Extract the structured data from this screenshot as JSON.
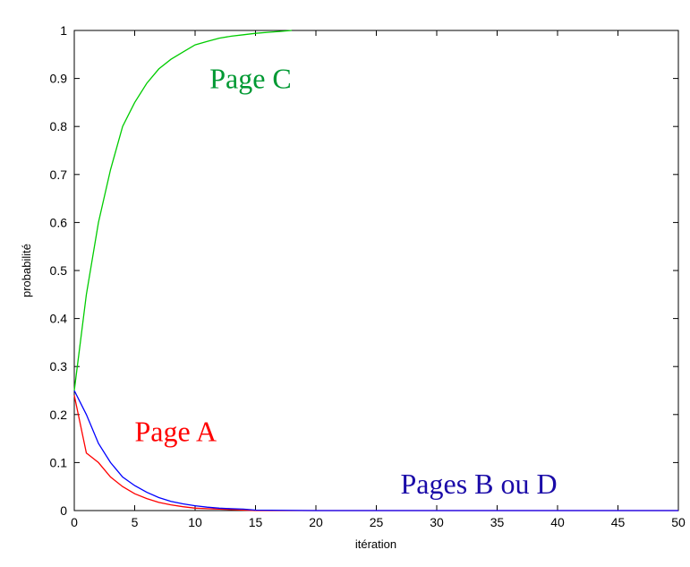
{
  "chart_data": {
    "type": "line",
    "title": "",
    "xlabel": "itération",
    "ylabel": "probabilité",
    "xlim": [
      0,
      50
    ],
    "ylim": [
      0,
      1
    ],
    "xticks": [
      0,
      5,
      10,
      15,
      20,
      25,
      30,
      35,
      40,
      45,
      50
    ],
    "yticks": [
      0,
      0.1,
      0.2,
      0.3,
      0.4,
      0.5,
      0.6,
      0.7,
      0.8,
      0.9,
      1
    ],
    "grid": false,
    "series": [
      {
        "label": "Page C",
        "color": "#00cc00",
        "x": [
          0,
          1,
          2,
          3,
          4,
          5,
          6,
          7,
          8,
          9,
          10,
          11,
          12,
          13,
          14,
          15,
          16,
          17,
          18
        ],
        "values": [
          0.25,
          0.45,
          0.6,
          0.71,
          0.8,
          0.85,
          0.89,
          0.92,
          0.94,
          0.955,
          0.97,
          0.977,
          0.984,
          0.988,
          0.991,
          0.994,
          0.996,
          0.998,
          1.0
        ]
      },
      {
        "label": "Page A",
        "color": "#ff0000",
        "x": [
          0,
          1,
          2,
          3,
          4,
          5,
          6,
          7,
          8,
          9,
          10,
          11,
          12,
          13,
          14,
          15,
          20,
          25,
          30,
          35,
          40,
          45,
          50
        ],
        "values": [
          0.24,
          0.12,
          0.1,
          0.07,
          0.05,
          0.035,
          0.025,
          0.017,
          0.012,
          0.008,
          0.005,
          0.004,
          0.003,
          0.002,
          0.001,
          0.0,
          0.0,
          0.0,
          0.0,
          0.0,
          0.0,
          0.0,
          0.0
        ]
      },
      {
        "label": "Pages B ou D",
        "color": "#0000ff",
        "x": [
          0,
          1,
          2,
          3,
          4,
          5,
          6,
          7,
          8,
          9,
          10,
          11,
          12,
          13,
          14,
          15,
          20,
          25,
          30,
          35,
          40,
          45,
          50
        ],
        "values": [
          0.25,
          0.2,
          0.14,
          0.1,
          0.07,
          0.052,
          0.038,
          0.027,
          0.019,
          0.014,
          0.01,
          0.007,
          0.005,
          0.004,
          0.003,
          0.001,
          0.0,
          0.0,
          0.0,
          0.0,
          0.0,
          0.0,
          0.0
        ]
      }
    ],
    "annotations": [
      {
        "text": "Page C",
        "color": "#009933",
        "x": 11.2,
        "y": 0.88
      },
      {
        "text": "Page A",
        "color": "#ff0000",
        "x": 5,
        "y": 0.145
      },
      {
        "text": "Pages B ou D",
        "color": "#1a0aa8",
        "x": 27,
        "y": 0.035
      }
    ]
  }
}
